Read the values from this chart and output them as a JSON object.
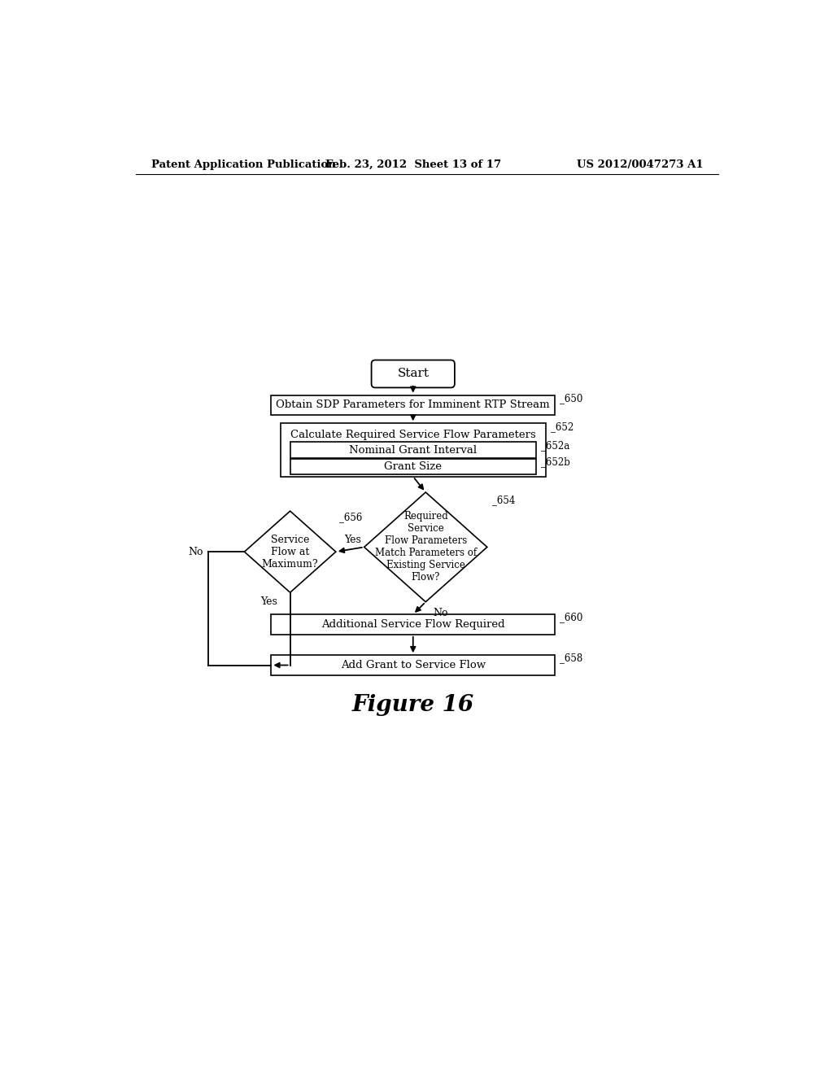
{
  "title_header_left": "Patent Application Publication",
  "title_header_mid": "Feb. 23, 2012  Sheet 13 of 17",
  "title_header_right": "US 2012/0047273 A1",
  "figure_label": "Figure 16",
  "background_color": "#ffffff",
  "line_color": "#000000",
  "box_fill": "#ffffff",
  "text_color": "#000000",
  "start_label": "Start",
  "box650_label": "Obtain SDP Parameters for Imminent RTP Stream",
  "box650_tag": "650",
  "box652_label": "Calculate Required Service Flow Parameters",
  "box652_tag": "652",
  "box652a_label": "Nominal Grant Interval",
  "box652a_tag": "652a",
  "box652b_label": "Grant Size",
  "box652b_tag": "652b",
  "d654_label": "Required\nService\nFlow Parameters\nMatch Parameters of\nExisting Service\nFlow?",
  "d654_tag": "654",
  "d656_label": "Service\nFlow at\nMaximum?",
  "d656_tag": "656",
  "box660_label": "Additional Service Flow Required",
  "box660_tag": "660",
  "box658_label": "Add Grant to Service Flow",
  "box658_tag": "658",
  "label_yes": "Yes",
  "label_no": "No"
}
